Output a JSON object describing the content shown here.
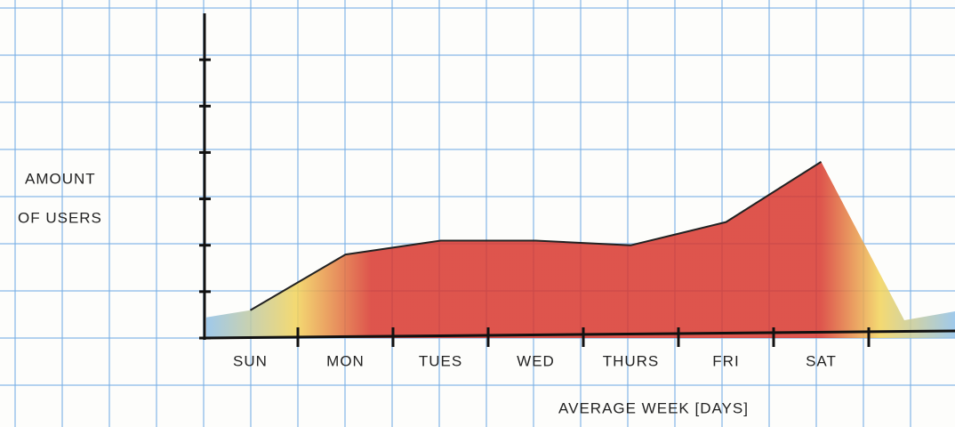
{
  "chart_data": {
    "type": "area",
    "y_label": [
      "AMOUNT",
      "OF USERS"
    ],
    "x_label": "AVERAGE WEEK [DAYS]",
    "categories": [
      "SUN",
      "MON",
      "TUES",
      "WED",
      "THURS",
      "FRI",
      "SAT"
    ],
    "values": [
      0.6,
      1.8,
      2.1,
      2.1,
      2.0,
      2.5,
      3.8
    ],
    "color": "#d8372e",
    "ylim": [
      0,
      7
    ],
    "yticks": [
      0,
      1,
      2,
      3,
      4,
      5,
      6
    ]
  }
}
